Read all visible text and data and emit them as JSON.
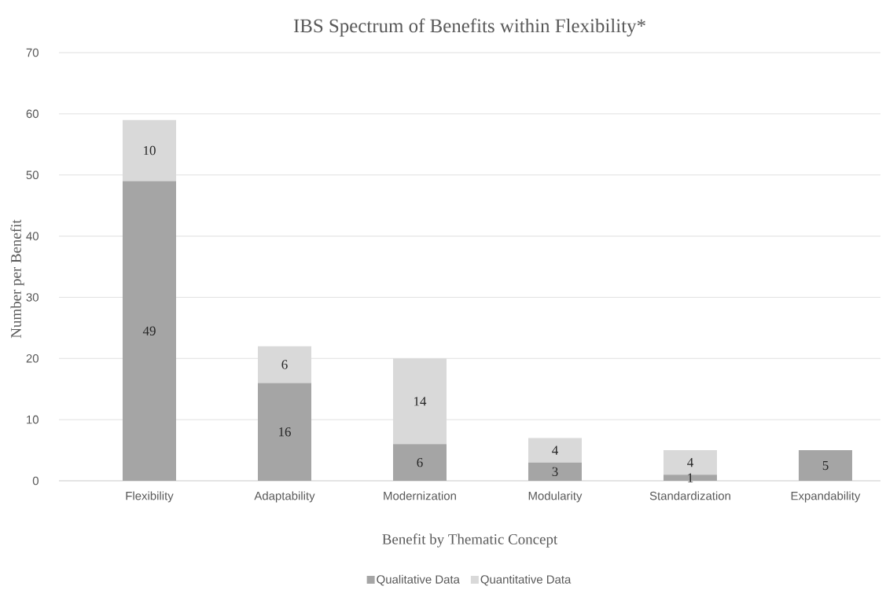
{
  "chart_data": {
    "type": "bar",
    "title": "IBS Spectrum of Benefits within Flexibility*",
    "xlabel": "Benefit by Thematic Concept",
    "ylabel": "Number per Benefit",
    "categories": [
      "Flexibility",
      "Adaptability",
      "Modernization",
      "Modularity",
      "Standardization",
      "Expandability"
    ],
    "stacked": true,
    "series": [
      {
        "name": "Qualitative Data",
        "color": "#a5a5a5",
        "values": [
          49,
          16,
          6,
          3,
          1,
          5
        ],
        "value_labels": [
          "49",
          "16",
          "6",
          "3",
          "1",
          "5"
        ]
      },
      {
        "name": "Quantitative Data",
        "color": "#d9d9d9",
        "values": [
          10,
          6,
          14,
          4,
          4,
          null
        ],
        "value_labels": [
          "10",
          "6",
          "14",
          "4",
          "4",
          null
        ]
      }
    ],
    "ylim": [
      0,
      70
    ],
    "yticks": [
      0,
      10,
      20,
      30,
      40,
      50,
      60,
      70
    ],
    "grid": "y",
    "legend": "bottom"
  }
}
